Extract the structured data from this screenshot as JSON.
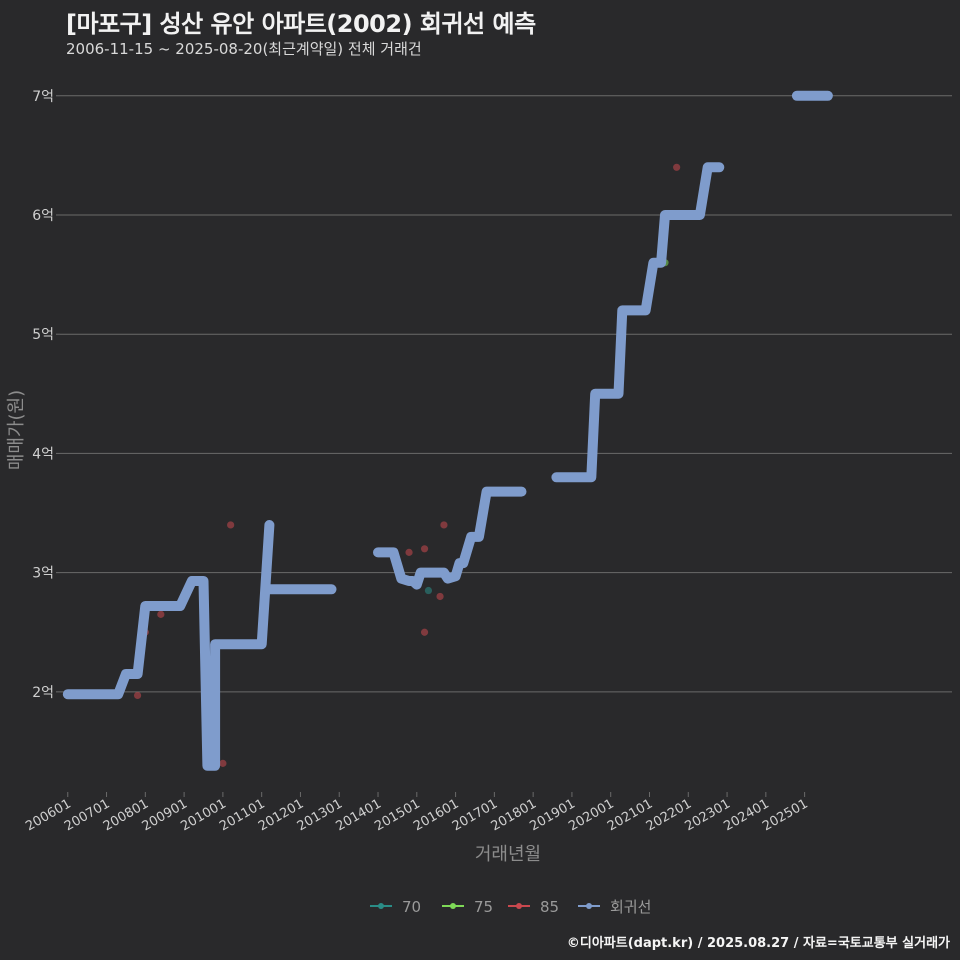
{
  "header": {
    "title": "[마포구] 성산 유안 아파트(2002) 회귀선 예측",
    "subtitle": "2006-11-15 ~ 2025-08-20(최근계약일) 전체 거래건"
  },
  "caption": "©디아파트(dapt.kr) / 2025.08.27 / 자료=국토교통부 실거래가",
  "colors": {
    "background": "#29292b",
    "grid": "#6a6a6a",
    "s70": "#2a8c86",
    "s75": "#7ed957",
    "s85": "#c9484e",
    "regression": "#7f9ccc"
  },
  "chart_data": {
    "type": "line",
    "xlabel": "거래년월",
    "ylabel": "매매가(원)",
    "x_ticks": [
      "200601",
      "200701",
      "200801",
      "200901",
      "201001",
      "201101",
      "201201",
      "201301",
      "201401",
      "201501",
      "201601",
      "201701",
      "201801",
      "201901",
      "202001",
      "202101",
      "202201",
      "202301",
      "202401",
      "202501"
    ],
    "y_ticks": [
      {
        "value": 2,
        "label": "2억"
      },
      {
        "value": 3,
        "label": "3억"
      },
      {
        "value": 4,
        "label": "4억"
      },
      {
        "value": 5,
        "label": "5억"
      },
      {
        "value": 6,
        "label": "6억"
      },
      {
        "value": 7,
        "label": "7억"
      }
    ],
    "xlim": [
      2005.8,
      2028.8
    ],
    "ylim": [
      1.16,
      7.3
    ],
    "unit": "억",
    "legend": [
      {
        "key": "s70",
        "label": "70"
      },
      {
        "key": "s75",
        "label": "75"
      },
      {
        "key": "s85",
        "label": "85"
      },
      {
        "key": "regression",
        "label": "회귀선"
      }
    ],
    "legend_position": "bottom",
    "grid": true,
    "scatter": [
      {
        "series": "s85",
        "points": [
          [
            2007.8,
            1.97
          ],
          [
            2008.0,
            2.5
          ],
          [
            2008.4,
            2.65
          ],
          [
            2010.0,
            1.4
          ],
          [
            2010.2,
            3.4
          ],
          [
            2014.8,
            3.17
          ],
          [
            2015.2,
            3.2
          ],
          [
            2015.2,
            2.5
          ],
          [
            2015.6,
            2.8
          ],
          [
            2015.7,
            3.4
          ],
          [
            2016.6,
            3.35
          ],
          [
            2021.7,
            6.4
          ]
        ]
      },
      {
        "series": "s70",
        "points": [
          [
            2015.3,
            2.85
          ]
        ]
      },
      {
        "series": "s75",
        "points": [
          [
            2021.4,
            5.6
          ]
        ]
      }
    ],
    "regression": [
      [
        [
          2006.0,
          1.98
        ],
        [
          2007.3,
          1.98
        ],
        [
          2007.5,
          2.15
        ],
        [
          2007.8,
          2.15
        ],
        [
          2008.0,
          2.72
        ],
        [
          2008.9,
          2.72
        ],
        [
          2009.2,
          2.93
        ],
        [
          2009.5,
          2.93
        ],
        [
          2009.6,
          1.38
        ],
        [
          2009.8,
          1.38
        ],
        [
          2009.8,
          2.4
        ],
        [
          2011.0,
          2.4
        ],
        [
          2011.2,
          3.4
        ]
      ],
      [
        [
          2011.2,
          2.86
        ],
        [
          2012.8,
          2.86
        ]
      ],
      [
        [
          2014.0,
          3.17
        ],
        [
          2014.4,
          3.17
        ],
        [
          2014.6,
          2.95
        ],
        [
          2014.8,
          2.93
        ],
        [
          2014.9,
          2.93
        ],
        [
          2015.0,
          2.9
        ],
        [
          2015.1,
          3.0
        ],
        [
          2015.7,
          3.0
        ],
        [
          2015.8,
          2.95
        ],
        [
          2016.0,
          2.97
        ],
        [
          2016.1,
          3.08
        ],
        [
          2016.2,
          3.08
        ],
        [
          2016.4,
          3.3
        ],
        [
          2016.6,
          3.3
        ],
        [
          2016.8,
          3.68
        ],
        [
          2017.7,
          3.68
        ]
      ],
      [
        [
          2018.6,
          3.8
        ],
        [
          2019.5,
          3.8
        ],
        [
          2019.6,
          4.5
        ],
        [
          2020.2,
          4.5
        ],
        [
          2020.3,
          5.2
        ],
        [
          2020.9,
          5.2
        ],
        [
          2021.1,
          5.6
        ],
        [
          2021.3,
          5.6
        ],
        [
          2021.4,
          6.0
        ],
        [
          2022.3,
          6.0
        ],
        [
          2022.5,
          6.4
        ],
        [
          2022.8,
          6.4
        ]
      ],
      [
        [
          2024.8,
          7.0
        ],
        [
          2025.6,
          7.0
        ]
      ]
    ]
  }
}
